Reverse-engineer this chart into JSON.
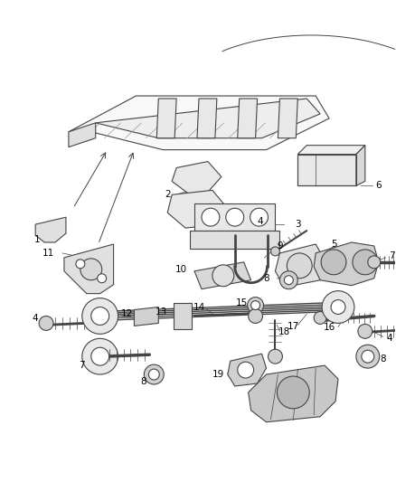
{
  "bg_color": "#ffffff",
  "line_color": "#444444",
  "label_color": "#000000",
  "fig_width": 4.38,
  "fig_height": 5.33,
  "dpi": 100
}
